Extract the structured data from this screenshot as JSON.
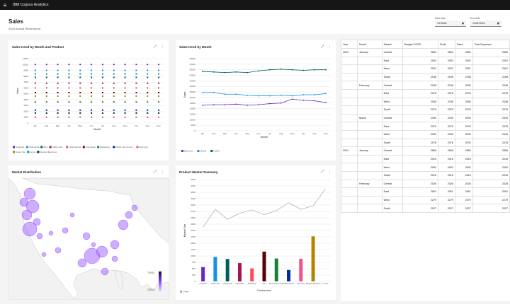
{
  "topbar": {
    "app_title": "IBM Cognos Analytics"
  },
  "header": {
    "title": "Sales",
    "subtitle": "2024 Annual Retail report"
  },
  "dates": {
    "start": {
      "label": "Start date",
      "value": "1/1/2024"
    },
    "end": {
      "label": "End date",
      "value": "12/31/2024"
    }
  },
  "cards": {
    "trend_product": {
      "title": "Sales trend by Month and Product"
    },
    "trend_month": {
      "title": "Sales trend by Month"
    },
    "market": {
      "title": "Market Distribution"
    },
    "summary": {
      "title": "Product Market Summary"
    }
  },
  "months": [
    "Jan",
    "Feb",
    "Mar",
    "Apr",
    "May",
    "Jun",
    "Jul",
    "Aug",
    "Sept",
    "Oct",
    "Nov",
    "Dec"
  ],
  "chart_data": [
    {
      "type": "scatter",
      "title": "Sales trend by Month and Product",
      "xlabel": "Month",
      "ylabel": "Sales",
      "ylim": [
        0,
        11000
      ],
      "yticks": [
        "0",
        "1000",
        "2000",
        "3000",
        "4000",
        "5000",
        "6000",
        "7000",
        "8000",
        "9000",
        "10000",
        "11000"
      ],
      "categories": [
        "Jan",
        "Feb",
        "Mar",
        "Apr",
        "May",
        "Jun",
        "Jul",
        "Aug",
        "Sept",
        "Oct",
        "Nov",
        "Dec"
      ],
      "series": [
        {
          "name": "Amaretto",
          "color": "#6929c4",
          "values": [
            10000,
            10000,
            10000,
            10000,
            10000,
            10000,
            10000,
            10000,
            10000,
            10000,
            10000,
            10000
          ]
        },
        {
          "name": "Chamomile",
          "color": "#1192e8",
          "values": [
            9000,
            9000,
            9000,
            9000,
            9000,
            9000,
            9000,
            9000,
            9000,
            9000,
            9000,
            9000
          ]
        },
        {
          "name": "Mint",
          "color": "#005d5d",
          "values": [
            7800,
            7800,
            7800,
            7800,
            7800,
            7800,
            7800,
            7800,
            7800,
            7800,
            7800,
            7800
          ]
        },
        {
          "name": "Caffe Latte",
          "color": "#9f1853",
          "values": [
            6800,
            6800,
            6800,
            6800,
            6800,
            6800,
            6800,
            6800,
            6800,
            6800,
            6800,
            6800
          ]
        },
        {
          "name": "Caffe Mocha",
          "color": "#fa4d56",
          "values": [
            6000,
            6000,
            6000,
            6000,
            6000,
            6000,
            6000,
            6000,
            6000,
            6000,
            6000,
            6000
          ]
        },
        {
          "name": "Columbian",
          "color": "#570408",
          "values": [
            5200,
            5200,
            5200,
            5200,
            5200,
            5200,
            5200,
            5200,
            5200,
            5200,
            5200,
            5200
          ]
        },
        {
          "name": "Darjeeling",
          "color": "#198038",
          "values": [
            3600,
            3600,
            3600,
            3600,
            3600,
            3600,
            3600,
            3600,
            3600,
            3600,
            3600,
            3600
          ]
        },
        {
          "name": "Decaf Irish Cream",
          "color": "#002d9c",
          "values": [
            2200,
            2200,
            2200,
            2200,
            2200,
            2200,
            2200,
            2200,
            2200,
            2200,
            2200,
            2200
          ]
        },
        {
          "name": "Earl Grey",
          "color": "#ee538b",
          "values": [
            1000,
            1000,
            1000,
            1000,
            1000,
            1000,
            1000,
            1000,
            1000,
            1000,
            1000,
            1000
          ]
        },
        {
          "name": "Green Tea",
          "color": "#b28600",
          "values": [
            4600,
            4600,
            4600,
            4600,
            4600,
            4600,
            4600,
            4600,
            4600,
            4600,
            4600,
            4600
          ]
        },
        {
          "name": "Lemon",
          "color": "#009d9a",
          "values": [
            8400,
            8400,
            8400,
            8400,
            8400,
            8400,
            8400,
            8400,
            8400,
            8400,
            8400,
            8400
          ]
        },
        {
          "name": "Regular Espresso",
          "color": "#012749",
          "values": [
            1700,
            1700,
            1700,
            1700,
            1700,
            1700,
            1700,
            1700,
            1700,
            1700,
            1700,
            1700
          ]
        }
      ]
    },
    {
      "type": "line",
      "title": "Sales trend by Month",
      "xlabel": "Month",
      "ylabel": "Sales",
      "ylim": [
        0,
        65000
      ],
      "yticks": [
        "0",
        "5000",
        "10000",
        "15000",
        "20000",
        "25000",
        "30000",
        "35000",
        "40000",
        "45000",
        "50000",
        "55000",
        "60000",
        "65000"
      ],
      "categories": [
        "Jan",
        "Feb",
        "Mar",
        "Apr",
        "May",
        "Jun",
        "Jul",
        "Aug",
        "Sept",
        "Oct",
        "Nov",
        "Dec"
      ],
      "series": [
        {
          "name": "Espresso",
          "color": "#6929c4",
          "values": [
            23000,
            23500,
            23500,
            24000,
            23000,
            23500,
            24500,
            25000,
            28500,
            27500,
            27000,
            25500
          ]
        },
        {
          "name": "Herbal",
          "color": "#1192e8",
          "values": [
            34500,
            34500,
            33000,
            33000,
            32000,
            31500,
            31500,
            32000,
            31500,
            32500,
            32500,
            33500
          ]
        },
        {
          "name": "Coffee",
          "color": "#005d5d",
          "values": [
            53500,
            53000,
            52500,
            53000,
            52500,
            54000,
            55000,
            55500,
            55000,
            54500,
            55000,
            55000
          ]
        }
      ]
    },
    {
      "type": "bar",
      "title": "Product Market Summary",
      "xlabel": "Product axis",
      "ylabel": "Market Size",
      "ylim": [
        0,
        4000
      ],
      "yticks": [
        "0",
        "250",
        "500",
        "750",
        "1000",
        "1250",
        "1500",
        "1750",
        "2000",
        "2250",
        "2500",
        "2750",
        "3000",
        "3250",
        "3500",
        "3750",
        "4000"
      ],
      "categories": [
        "Amaretto",
        "Caffe Latte",
        "Chamomile",
        "Columbian",
        "Darjeeling",
        "Mint",
        "Decaf Irish Cream",
        "Caffe Mocha",
        "Earl Grey",
        "Regular Espresso",
        "Lemon",
        "Green Tea"
      ],
      "colors": [
        "#6929c4",
        "#1192e8",
        "#005d5d",
        "#9f1853",
        "#fa4d56",
        "#570408",
        "#198038",
        "#002d9c",
        "#ee538b",
        "#b28600",
        "#009d9a",
        "#012749"
      ],
      "values": [
        560,
        960,
        880,
        720,
        510,
        1170,
        900,
        450,
        890,
        1770,
        0,
        0
      ],
      "line_name": "Profit",
      "line_values": [
        2130,
        2830,
        2440,
        2680,
        2810,
        2620,
        2780,
        3090,
        2830,
        2970,
        3630,
        0
      ]
    }
  ],
  "map": {
    "legend_low": "70000",
    "legend_high": "23000"
  },
  "table": {
    "headers": [
      "Year",
      "Month",
      "Market",
      "Budget COGS",
      "Profit",
      "Sales",
      "Total Expenses"
    ],
    "rows": [
      [
        "2023",
        "January",
        "Central",
        "2850",
        "2850",
        "2850",
        "2850"
      ],
      [
        "",
        "",
        "East",
        "2092",
        "2092",
        "2092",
        "2092"
      ],
      [
        "",
        "",
        "West",
        "2091",
        "2091",
        "2091",
        "2091"
      ],
      [
        "",
        "",
        "South",
        "2198",
        "2198",
        "2198",
        "2198"
      ],
      [
        "",
        "February",
        "Central",
        "2048",
        "2048",
        "2048",
        "2048"
      ],
      [
        "",
        "",
        "East",
        "2078",
        "2078",
        "2078",
        "2078"
      ],
      [
        "",
        "",
        "West",
        "2048",
        "2048",
        "2048",
        "2048"
      ],
      [
        "",
        "",
        "South",
        "2078",
        "2078",
        "2078",
        "2078"
      ],
      [
        "",
        "March",
        "Central",
        "2049",
        "2049",
        "2049",
        "2049"
      ],
      [
        "",
        "",
        "East",
        "2078",
        "2078",
        "2078",
        "2078"
      ],
      [
        "",
        "",
        "West",
        "2049",
        "2049",
        "2049",
        "2049"
      ],
      [
        "",
        "",
        "South",
        "2078",
        "2078",
        "2078",
        "2078"
      ],
      [
        "2024",
        "January",
        "Central",
        "2856",
        "2856",
        "2856",
        "2856"
      ],
      [
        "",
        "",
        "East",
        "2016",
        "2016",
        "2016",
        "2016"
      ],
      [
        "",
        "",
        "West",
        "2092",
        "2092",
        "2092",
        "2092"
      ],
      [
        "",
        "",
        "South",
        "2016",
        "2016",
        "2016",
        "2016"
      ],
      [
        "",
        "February",
        "Central",
        "2028",
        "2028",
        "2028",
        "2028"
      ],
      [
        "",
        "",
        "East",
        "2051",
        "2051",
        "2051",
        "2051"
      ],
      [
        "",
        "",
        "West",
        "2279",
        "2279",
        "2279",
        "2279"
      ],
      [
        "",
        "",
        "South",
        "2027",
        "2027",
        "2027",
        "2027"
      ]
    ]
  }
}
